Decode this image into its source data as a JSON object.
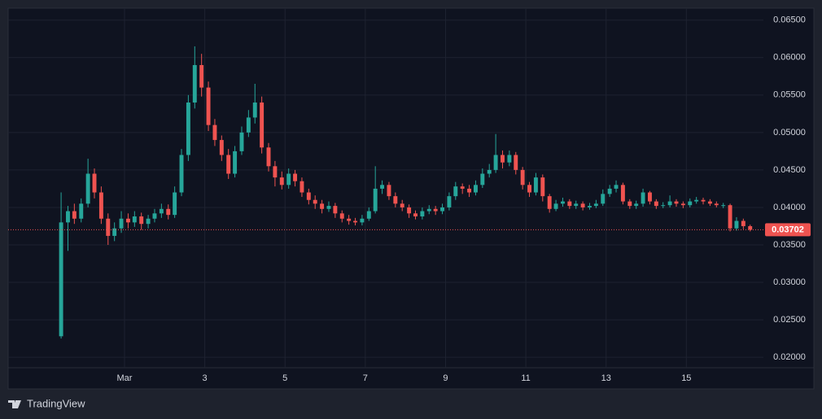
{
  "chart_data": {
    "type": "candlestick",
    "branding": "TradingView",
    "up_color": "#26a69a",
    "down_color": "#ef5350",
    "grid": true,
    "xlim": [
      -1.9,
      16.92
    ],
    "xticks": [
      {
        "value": 1,
        "label": "Mar"
      },
      3,
      5,
      7,
      9,
      11,
      13,
      15
    ],
    "ylim": [
      0.0186,
      0.0666
    ],
    "yticks": [
      {
        "value": 0.02,
        "label": "0.02000"
      },
      {
        "value": 0.025,
        "label": "0.02500"
      },
      {
        "value": 0.03,
        "label": "0.03000"
      },
      {
        "value": 0.035,
        "label": "0.03500"
      },
      {
        "value": 0.04,
        "label": "0.04000"
      },
      {
        "value": 0.045,
        "label": "0.04500"
      },
      {
        "value": 0.05,
        "label": "0.05000"
      },
      {
        "value": 0.055,
        "label": "0.05500"
      },
      {
        "value": 0.06,
        "label": "0.06000"
      },
      {
        "value": 0.065,
        "label": "0.06500"
      }
    ],
    "last_price": 0.03702,
    "x": [
      -0.58,
      -0.41,
      -0.25,
      -0.08,
      0.09,
      0.25,
      0.42,
      0.59,
      0.75,
      0.92,
      1.09,
      1.25,
      1.42,
      1.59,
      1.75,
      1.92,
      2.09,
      2.25,
      2.42,
      2.59,
      2.75,
      2.92,
      3.09,
      3.25,
      3.42,
      3.59,
      3.75,
      3.92,
      4.09,
      4.25,
      4.42,
      4.59,
      4.75,
      4.92,
      5.09,
      5.25,
      5.42,
      5.59,
      5.75,
      5.92,
      6.09,
      6.25,
      6.42,
      6.59,
      6.75,
      6.92,
      7.09,
      7.25,
      7.42,
      7.59,
      7.75,
      7.92,
      8.09,
      8.25,
      8.42,
      8.59,
      8.75,
      8.92,
      9.09,
      9.25,
      9.42,
      9.59,
      9.75,
      9.92,
      10.09,
      10.25,
      10.42,
      10.59,
      10.75,
      10.92,
      11.09,
      11.25,
      11.42,
      11.59,
      11.75,
      11.92,
      12.09,
      12.25,
      12.42,
      12.59,
      12.75,
      12.92,
      13.09,
      13.25,
      13.42,
      13.59,
      13.75,
      13.92,
      14.09,
      14.25,
      14.42,
      14.59,
      14.75,
      14.92,
      15.09,
      15.25,
      15.42,
      15.59,
      15.75,
      15.92,
      16.09,
      16.25,
      16.42,
      16.59
    ],
    "open": [
      0.0228,
      0.038,
      0.0395,
      0.0385,
      0.0405,
      0.0445,
      0.042,
      0.0385,
      0.0362,
      0.0372,
      0.0385,
      0.038,
      0.0388,
      0.0378,
      0.0385,
      0.0392,
      0.0398,
      0.039,
      0.042,
      0.047,
      0.054,
      0.059,
      0.056,
      0.051,
      0.049,
      0.047,
      0.0445,
      0.0475,
      0.05,
      0.052,
      0.054,
      0.048,
      0.0455,
      0.044,
      0.043,
      0.0445,
      0.0435,
      0.042,
      0.041,
      0.0405,
      0.0398,
      0.0402,
      0.0392,
      0.0385,
      0.0382,
      0.038,
      0.0385,
      0.0395,
      0.0425,
      0.043,
      0.0415,
      0.0405,
      0.04,
      0.0392,
      0.0388,
      0.0395,
      0.0398,
      0.0395,
      0.04,
      0.0415,
      0.0428,
      0.0425,
      0.042,
      0.043,
      0.0445,
      0.045,
      0.047,
      0.046,
      0.047,
      0.045,
      0.043,
      0.042,
      0.044,
      0.0415,
      0.0398,
      0.0405,
      0.0408,
      0.0402,
      0.0405,
      0.04,
      0.0402,
      0.0405,
      0.0418,
      0.0425,
      0.043,
      0.0408,
      0.0402,
      0.0405,
      0.042,
      0.0408,
      0.0402,
      0.0403,
      0.0408,
      0.0405,
      0.0403,
      0.0408,
      0.041,
      0.0408,
      0.0405,
      0.0403,
      0.0403,
      0.0372,
      0.0382,
      0.0375
    ],
    "high": [
      0.042,
      0.0402,
      0.0405,
      0.0412,
      0.0465,
      0.0452,
      0.0428,
      0.0392,
      0.038,
      0.0395,
      0.0392,
      0.0395,
      0.0393,
      0.039,
      0.0398,
      0.0405,
      0.0404,
      0.0428,
      0.0478,
      0.055,
      0.0615,
      0.0605,
      0.0568,
      0.0518,
      0.0496,
      0.0478,
      0.0482,
      0.0508,
      0.053,
      0.0565,
      0.0548,
      0.0486,
      0.0462,
      0.0448,
      0.0452,
      0.045,
      0.044,
      0.0425,
      0.0416,
      0.041,
      0.0408,
      0.0406,
      0.0396,
      0.039,
      0.0386,
      0.039,
      0.04,
      0.0455,
      0.0436,
      0.0434,
      0.042,
      0.041,
      0.0404,
      0.0396,
      0.04,
      0.0403,
      0.0402,
      0.0405,
      0.042,
      0.0434,
      0.0432,
      0.043,
      0.0436,
      0.0452,
      0.0458,
      0.0498,
      0.0476,
      0.0476,
      0.0474,
      0.0454,
      0.0434,
      0.0446,
      0.0444,
      0.0418,
      0.041,
      0.0413,
      0.0411,
      0.0409,
      0.0408,
      0.0406,
      0.041,
      0.0424,
      0.043,
      0.0436,
      0.0433,
      0.0411,
      0.0409,
      0.0425,
      0.0422,
      0.0411,
      0.0407,
      0.0416,
      0.0411,
      0.0408,
      0.0412,
      0.0414,
      0.0413,
      0.0411,
      0.0408,
      0.0406,
      0.0405,
      0.0387,
      0.0385,
      0.0377
    ],
    "low": [
      0.0225,
      0.0342,
      0.0378,
      0.038,
      0.04,
      0.0412,
      0.0378,
      0.035,
      0.0355,
      0.0366,
      0.0372,
      0.0374,
      0.037,
      0.0372,
      0.038,
      0.0386,
      0.0384,
      0.0386,
      0.0415,
      0.0462,
      0.0532,
      0.0548,
      0.0502,
      0.0482,
      0.0462,
      0.0438,
      0.044,
      0.047,
      0.0494,
      0.0512,
      0.0472,
      0.0448,
      0.0428,
      0.0424,
      0.0425,
      0.0428,
      0.0414,
      0.0404,
      0.0398,
      0.0392,
      0.0394,
      0.0386,
      0.038,
      0.0377,
      0.0376,
      0.0376,
      0.0382,
      0.0392,
      0.0418,
      0.041,
      0.04,
      0.0395,
      0.0386,
      0.0384,
      0.0384,
      0.0391,
      0.039,
      0.0391,
      0.0396,
      0.041,
      0.0418,
      0.0414,
      0.0416,
      0.0426,
      0.044,
      0.0446,
      0.0452,
      0.0455,
      0.0444,
      0.0424,
      0.0414,
      0.0416,
      0.0408,
      0.0393,
      0.0395,
      0.0401,
      0.0398,
      0.0398,
      0.0396,
      0.0397,
      0.0399,
      0.0402,
      0.0414,
      0.042,
      0.0404,
      0.0398,
      0.0398,
      0.0401,
      0.0404,
      0.0398,
      0.0399,
      0.04,
      0.0401,
      0.0399,
      0.04,
      0.0405,
      0.0404,
      0.0402,
      0.04,
      0.0399,
      0.0368,
      0.0369,
      0.0371,
      0.0368
    ],
    "close": [
      0.038,
      0.0395,
      0.0385,
      0.0405,
      0.0445,
      0.042,
      0.0385,
      0.0362,
      0.0372,
      0.0385,
      0.038,
      0.0388,
      0.0378,
      0.0385,
      0.0392,
      0.0398,
      0.039,
      0.042,
      0.047,
      0.054,
      0.059,
      0.056,
      0.051,
      0.049,
      0.047,
      0.0445,
      0.0475,
      0.05,
      0.052,
      0.054,
      0.048,
      0.0455,
      0.044,
      0.043,
      0.0445,
      0.0435,
      0.042,
      0.041,
      0.0405,
      0.0398,
      0.0402,
      0.0392,
      0.0385,
      0.0382,
      0.038,
      0.0385,
      0.0395,
      0.0425,
      0.043,
      0.0415,
      0.0405,
      0.04,
      0.0392,
      0.0388,
      0.0395,
      0.0398,
      0.0395,
      0.04,
      0.0415,
      0.0428,
      0.0425,
      0.042,
      0.043,
      0.0445,
      0.045,
      0.047,
      0.046,
      0.047,
      0.045,
      0.043,
      0.042,
      0.044,
      0.0415,
      0.0398,
      0.0405,
      0.0408,
      0.0402,
      0.0405,
      0.04,
      0.0402,
      0.0405,
      0.0418,
      0.0425,
      0.043,
      0.0408,
      0.0402,
      0.0405,
      0.042,
      0.0408,
      0.0402,
      0.0403,
      0.0408,
      0.0405,
      0.0403,
      0.0408,
      0.041,
      0.0408,
      0.0405,
      0.0403,
      0.0403,
      0.0372,
      0.0382,
      0.0375,
      0.03702
    ]
  }
}
